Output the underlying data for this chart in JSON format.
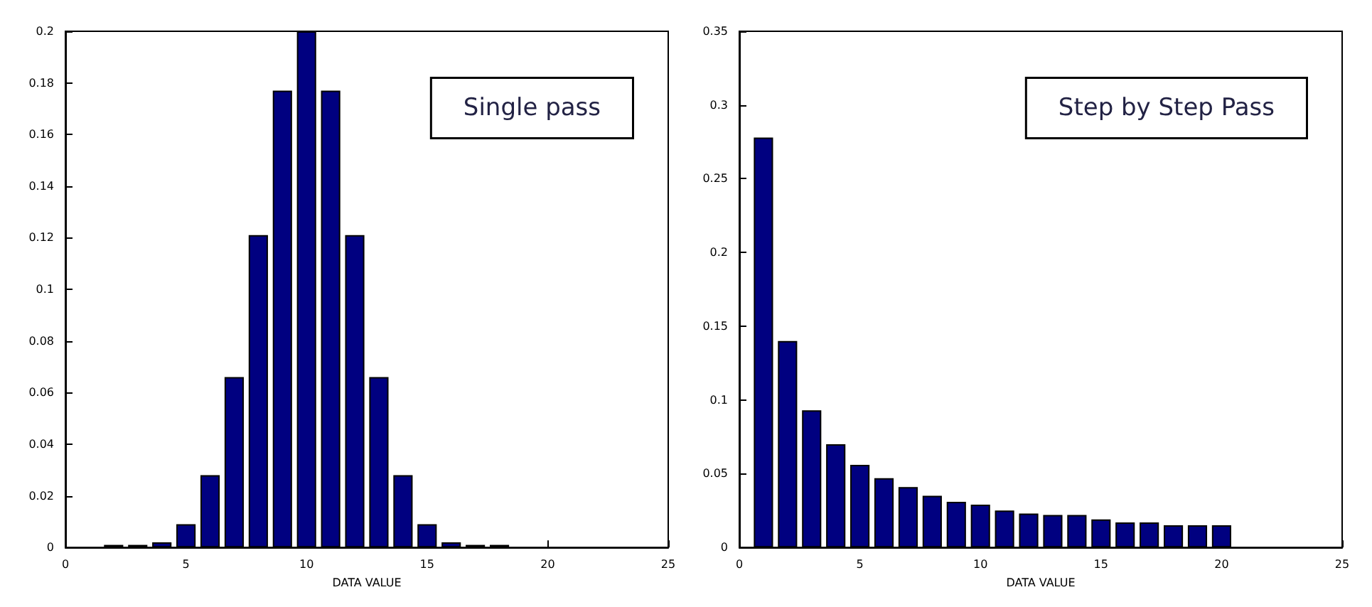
{
  "chart_data": [
    {
      "type": "bar",
      "xlabel": "DATA VALUE",
      "annotations": [
        "Single pass"
      ],
      "color": "#000080",
      "grid": false,
      "x": [
        2,
        3,
        4,
        5,
        6,
        7,
        8,
        9,
        10,
        11,
        12,
        13,
        14,
        15,
        16,
        17,
        18
      ],
      "values": [
        0.001,
        0.001,
        0.002,
        0.009,
        0.028,
        0.066,
        0.121,
        0.177,
        0.2,
        0.177,
        0.121,
        0.066,
        0.028,
        0.009,
        0.002,
        0.001,
        0.001
      ],
      "xlim": [
        0,
        25
      ],
      "xticks": [
        0,
        5,
        10,
        15,
        20,
        25
      ],
      "ylim": [
        0,
        0.2
      ],
      "yticks": [
        0,
        0.02,
        0.04,
        0.06,
        0.08,
        0.1,
        0.12,
        0.14,
        0.16,
        0.18,
        0.2
      ]
    },
    {
      "type": "bar",
      "xlabel": "DATA VALUE",
      "annotations": [
        "Step by Step Pass"
      ],
      "color": "#000080",
      "grid": false,
      "x": [
        1,
        2,
        3,
        4,
        5,
        6,
        7,
        8,
        9,
        10,
        11,
        12,
        13,
        14,
        15,
        16,
        17,
        18,
        19,
        20
      ],
      "values": [
        0.278,
        0.14,
        0.093,
        0.07,
        0.056,
        0.047,
        0.041,
        0.035,
        0.031,
        0.029,
        0.025,
        0.023,
        0.022,
        0.022,
        0.019,
        0.017,
        0.017,
        0.015,
        0.015,
        0.015
      ],
      "xlim": [
        0,
        25
      ],
      "xticks": [
        0,
        5,
        10,
        15,
        20,
        25
      ],
      "ylim": [
        0,
        0.35
      ],
      "yticks": [
        0,
        0.05,
        0.1,
        0.15,
        0.2,
        0.25,
        0.3,
        0.35
      ]
    }
  ]
}
